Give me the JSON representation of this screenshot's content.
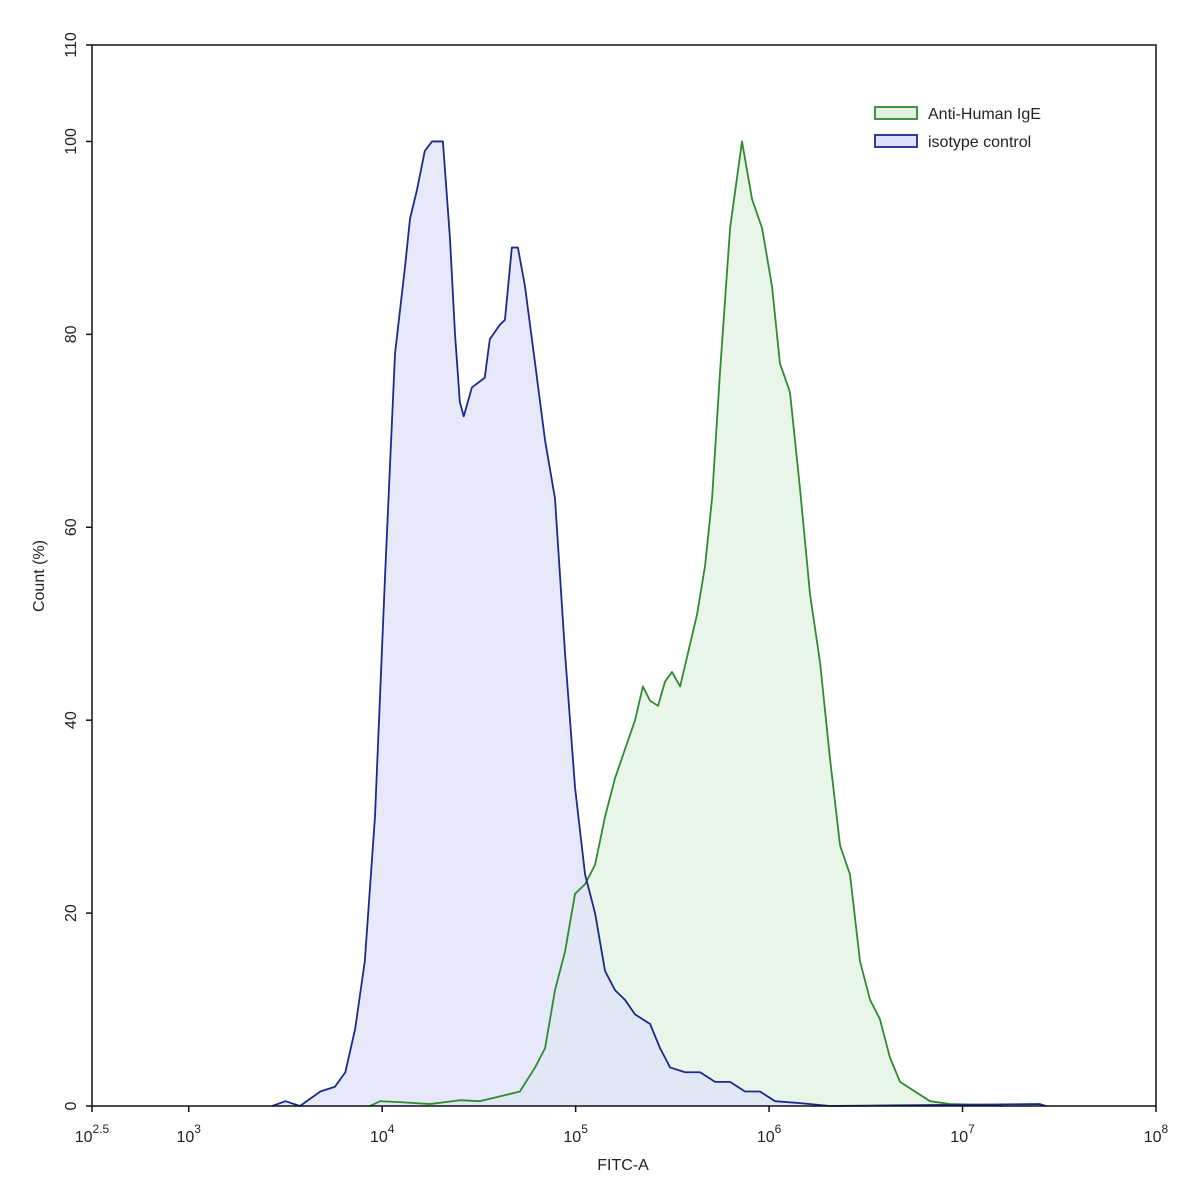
{
  "chart_data": {
    "type": "histogram-overlay",
    "xlabel": "FITC-A",
    "ylabel": "Count  (%)",
    "xscale": "log",
    "xlim": [
      316.22776601683796,
      100000000
    ],
    "xticks": [
      {
        "value": 316.22776601683796,
        "label": "10",
        "exponent": "2.5"
      },
      {
        "value": 1000,
        "label": "10",
        "exponent": "3"
      },
      {
        "value": 10000,
        "label": "10",
        "exponent": "4"
      },
      {
        "value": 100000,
        "label": "10",
        "exponent": "5"
      },
      {
        "value": 1000000,
        "label": "10",
        "exponent": "6"
      },
      {
        "value": 10000000,
        "label": "10",
        "exponent": "7"
      },
      {
        "value": 100000000,
        "label": "10",
        "exponent": "8"
      }
    ],
    "ylim": [
      0,
      110
    ],
    "yticks": [
      0,
      20,
      40,
      60,
      80,
      100,
      110
    ],
    "legend": "upper right",
    "series": [
      {
        "name": "Anti-Human IgE",
        "color": "#2e8b2e",
        "fill": "#e2f2e2",
        "x": [
          8650,
          9750,
          12360,
          17660,
          25200,
          32000,
          40600,
          51500,
          61700,
          69500,
          78200,
          88100,
          99300,
          111900,
          126000,
          141900,
          159900,
          180000,
          202800,
          222700,
          242600,
          266800,
          289700,
          314800,
          346700,
          381100,
          424600,
          466700,
          507200,
          557200,
          628400,
          724400,
          816600,
          920400,
          1035000,
          1138000,
          1282000,
          1445000,
          1629000,
          1834000,
          2065000,
          2328000,
          2620000,
          2951000,
          3327000,
          3741000,
          4217000,
          4753000,
          5675000,
          6792000,
          8610000,
          13840000,
          16000000
        ],
        "values": [
          0,
          0.5,
          0.4,
          0.2,
          0.6,
          0.5,
          1,
          1.5,
          4,
          6,
          12,
          16,
          22,
          23,
          25,
          30,
          34,
          37,
          40,
          43.5,
          42,
          41.5,
          44,
          45,
          43.5,
          47,
          51,
          56,
          63,
          76,
          91,
          100,
          94,
          91,
          85,
          77,
          74,
          64,
          53,
          46,
          36,
          27,
          24,
          15,
          11,
          9,
          5,
          2.5,
          1.5,
          0.5,
          0.2,
          0.1,
          0
        ]
      },
      {
        "name": "isotype control",
        "color": "#1b2a8c",
        "fill": "#dfe2fa",
        "x": [
          2700,
          3160,
          3760,
          4790,
          5700,
          6450,
          7250,
          8130,
          9180,
          10350,
          11650,
          13120,
          13930,
          15140,
          16600,
          18100,
          20600,
          22400,
          23800,
          25200,
          26400,
          29100,
          33900,
          36000,
          40600,
          43100,
          46800,
          50300,
          54700,
          61700,
          69500,
          78200,
          88100,
          99300,
          111900,
          126000,
          141900,
          159900,
          180000,
          202800,
          242600,
          273100,
          307800,
          368000,
          439800,
          525600,
          628400,
          751000,
          897000,
          1074000,
          1445000,
          2065000,
          25100000,
          27000000
        ],
        "values": [
          0,
          0.5,
          0,
          1.5,
          2,
          3.5,
          8,
          15,
          30,
          55,
          78,
          87,
          92,
          95,
          99,
          100,
          100,
          90,
          80,
          73,
          71.5,
          74.5,
          75.5,
          79.5,
          81,
          81.5,
          89,
          89,
          85,
          77,
          69,
          63,
          47,
          33,
          24,
          20,
          14,
          12,
          11,
          9.5,
          8.5,
          6,
          4,
          3.5,
          3.5,
          2.5,
          2.5,
          1.5,
          1.5,
          0.5,
          0.3,
          0,
          0.2,
          0
        ]
      }
    ]
  }
}
